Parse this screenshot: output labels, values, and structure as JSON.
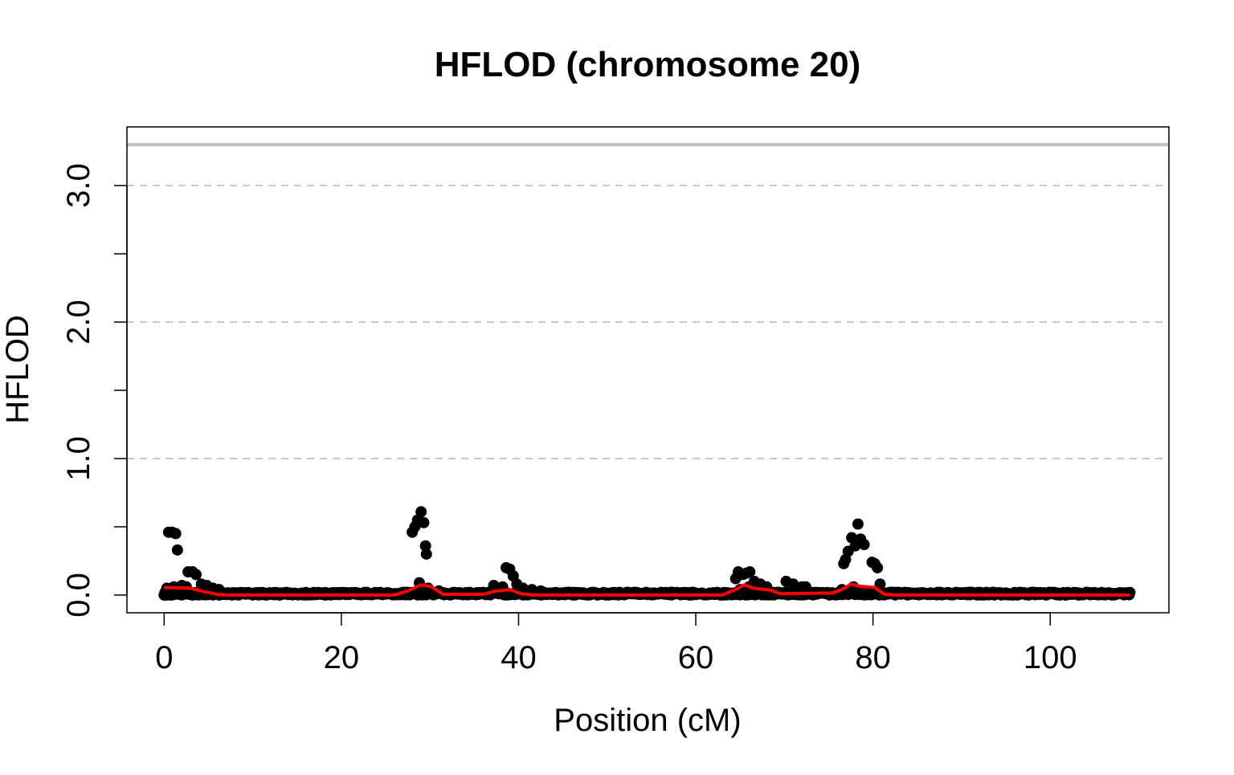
{
  "chart_data": {
    "type": "scatter",
    "title": "HFLOD (chromosome 20)",
    "xlabel": "Position (cM)",
    "ylabel": "HFLOD",
    "xlim": [
      -4.2,
      113.4
    ],
    "ylim": [
      -0.13,
      3.43
    ],
    "x_ticks": [
      0,
      20,
      40,
      60,
      80,
      100
    ],
    "x_tick_labels": [
      "0",
      "20",
      "40",
      "60",
      "80",
      "100"
    ],
    "y_ticks": [
      0,
      0.5,
      1,
      1.5,
      2,
      2.5,
      3
    ],
    "y_tick_labels": [
      "0.0",
      "",
      "1.0",
      "",
      "2.0",
      "",
      "3.0"
    ],
    "gridlines_y": [
      1,
      2,
      3
    ],
    "threshold_line": 3.3,
    "grid": true,
    "legend": "none",
    "colors": {
      "points": "#000000",
      "smooth": "#ff0000",
      "threshold": "#bebebe",
      "grid": "#c8c8c8"
    },
    "series": [
      {
        "type": "scatter",
        "points": [
          [
            0.5,
            0.46
          ],
          [
            0.9,
            0.46
          ],
          [
            1.3,
            0.45
          ],
          [
            1.5,
            0.33
          ],
          [
            2.7,
            0.17
          ],
          [
            3.2,
            0.17
          ],
          [
            3.6,
            0.15
          ],
          [
            4.2,
            0.08
          ],
          [
            4.8,
            0.07
          ],
          [
            5.5,
            0.05
          ],
          [
            6.2,
            0.04
          ],
          [
            0.3,
            0.05
          ],
          [
            1.1,
            0.06
          ],
          [
            2.0,
            0.07
          ],
          [
            2.5,
            0.06
          ],
          [
            28.0,
            0.46
          ],
          [
            28.3,
            0.5
          ],
          [
            28.6,
            0.55
          ],
          [
            29.0,
            0.61
          ],
          [
            29.3,
            0.53
          ],
          [
            29.5,
            0.36
          ],
          [
            29.6,
            0.3
          ],
          [
            28.8,
            0.09
          ],
          [
            29.8,
            0.05
          ],
          [
            31.0,
            0.03
          ],
          [
            37.2,
            0.07
          ],
          [
            38.2,
            0.06
          ],
          [
            38.6,
            0.2
          ],
          [
            39.0,
            0.19
          ],
          [
            39.4,
            0.14
          ],
          [
            39.8,
            0.08
          ],
          [
            40.5,
            0.05
          ],
          [
            41.5,
            0.04
          ],
          [
            42.5,
            0.03
          ],
          [
            64.5,
            0.12
          ],
          [
            64.8,
            0.17
          ],
          [
            65.3,
            0.15
          ],
          [
            65.7,
            0.16
          ],
          [
            66.1,
            0.17
          ],
          [
            66.6,
            0.1
          ],
          [
            67.3,
            0.08
          ],
          [
            68.0,
            0.06
          ],
          [
            65.0,
            0.04
          ],
          [
            66.0,
            0.06
          ],
          [
            70.2,
            0.1
          ],
          [
            71.0,
            0.08
          ],
          [
            72.0,
            0.06
          ],
          [
            72.4,
            0.06
          ],
          [
            76.7,
            0.23
          ],
          [
            76.9,
            0.26
          ],
          [
            77.2,
            0.32
          ],
          [
            77.6,
            0.42
          ],
          [
            78.0,
            0.36
          ],
          [
            78.3,
            0.52
          ],
          [
            78.6,
            0.41
          ],
          [
            79.0,
            0.37
          ],
          [
            79.9,
            0.24
          ],
          [
            80.2,
            0.23
          ],
          [
            80.5,
            0.2
          ],
          [
            80.8,
            0.08
          ],
          [
            77.8,
            0.06
          ],
          [
            76.5,
            0.04
          ]
        ],
        "baseline_range": [
          0,
          109
        ],
        "baseline_value": 0.0
      },
      {
        "type": "line",
        "points": [
          [
            0,
            0.055
          ],
          [
            3,
            0.05
          ],
          [
            4.5,
            0.025
          ],
          [
            6,
            0.005
          ],
          [
            7,
            0.0
          ],
          [
            26,
            0.0
          ],
          [
            27.5,
            0.03
          ],
          [
            29,
            0.075
          ],
          [
            30.2,
            0.06
          ],
          [
            31.5,
            0.005
          ],
          [
            36,
            0.005
          ],
          [
            37.5,
            0.03
          ],
          [
            39,
            0.04
          ],
          [
            40.3,
            0.01
          ],
          [
            41.5,
            0.0
          ],
          [
            63,
            0.0
          ],
          [
            64.5,
            0.04
          ],
          [
            65.5,
            0.075
          ],
          [
            66.5,
            0.05
          ],
          [
            68.5,
            0.035
          ],
          [
            69.5,
            0.01
          ],
          [
            75.5,
            0.015
          ],
          [
            76.8,
            0.05
          ],
          [
            77.5,
            0.08
          ],
          [
            78.5,
            0.065
          ],
          [
            80.2,
            0.055
          ],
          [
            81.3,
            0.005
          ],
          [
            82.5,
            0.0
          ],
          [
            109,
            0.0
          ]
        ]
      }
    ]
  }
}
